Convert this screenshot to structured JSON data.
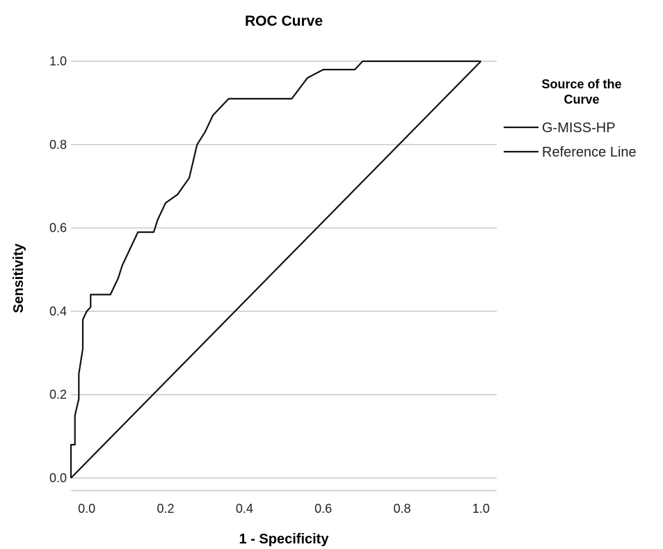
{
  "chart_data": {
    "type": "line",
    "title": "ROC Curve",
    "xlabel": "1 - Specificity",
    "ylabel": "Sensitivity",
    "xlim": [
      -0.04,
      1.04
    ],
    "ylim": [
      -0.03,
      1.03
    ],
    "x_ticks": [
      "0.0",
      "0.2",
      "0.4",
      "0.6",
      "0.8",
      "1.0"
    ],
    "y_ticks": [
      "0.0",
      "0.2",
      "0.4",
      "0.6",
      "0.8",
      "1.0"
    ],
    "grid": "horizontal",
    "legend": {
      "title": "Source of the Curve",
      "placement": "right"
    },
    "series": [
      {
        "name": "G-MISS-HP",
        "x": [
          -0.04,
          -0.04,
          -0.03,
          -0.03,
          -0.02,
          -0.02,
          -0.01,
          -0.01,
          0.0,
          0.0,
          0.01,
          0.01,
          0.02,
          0.02,
          0.04,
          0.04,
          0.06,
          0.08,
          0.09,
          0.11,
          0.13,
          0.15,
          0.17,
          0.18,
          0.2,
          0.23,
          0.26,
          0.28,
          0.3,
          0.32,
          0.34,
          0.36,
          0.38,
          0.4,
          0.44,
          0.48,
          0.52,
          0.56,
          0.6,
          0.64,
          0.68,
          0.7,
          0.74,
          0.78,
          0.9,
          1.0
        ],
        "y": [
          0.0,
          0.08,
          0.08,
          0.15,
          0.19,
          0.25,
          0.31,
          0.38,
          0.4,
          0.4,
          0.41,
          0.44,
          0.44,
          0.44,
          0.44,
          0.44,
          0.44,
          0.48,
          0.51,
          0.55,
          0.59,
          0.59,
          0.59,
          0.62,
          0.66,
          0.68,
          0.72,
          0.8,
          0.83,
          0.87,
          0.89,
          0.91,
          0.91,
          0.91,
          0.91,
          0.91,
          0.91,
          0.96,
          0.98,
          0.98,
          0.98,
          1.0,
          1.0,
          1.0,
          1.0,
          1.0
        ]
      },
      {
        "name": "Reference Line",
        "x": [
          -0.04,
          1.0
        ],
        "y": [
          0.0,
          1.0
        ]
      }
    ]
  }
}
